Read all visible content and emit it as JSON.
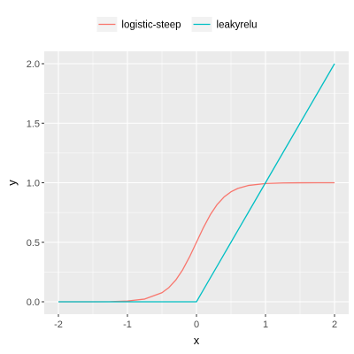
{
  "chart_data": {
    "type": "line",
    "xlabel": "x",
    "ylabel": "y",
    "xlim": [
      -2,
      2
    ],
    "ylim": [
      0,
      2
    ],
    "x_ticks": [
      -2,
      -1,
      0,
      1,
      2
    ],
    "x_tick_labels": [
      "-2",
      "-1",
      "0",
      "1",
      "2"
    ],
    "y_ticks": [
      0,
      0.5,
      1,
      1.5,
      2
    ],
    "y_tick_labels": [
      "0.0",
      "0.5",
      "1.0",
      "1.5",
      "2.0"
    ],
    "grid": true,
    "legend_position": "top",
    "x": [
      -2.0,
      -1.75,
      -1.5,
      -1.25,
      -1.0,
      -0.75,
      -0.5,
      -0.4,
      -0.3,
      -0.2,
      -0.1,
      0.0,
      0.1,
      0.2,
      0.3,
      0.4,
      0.5,
      0.6,
      0.75,
      1.0,
      1.25,
      1.5,
      1.75,
      2.0
    ],
    "series": [
      {
        "name": "logistic-steep",
        "color": "#F8766D",
        "values": [
          0.0,
          0.0001,
          0.0002,
          0.0009,
          0.0067,
          0.0229,
          0.0759,
          0.1192,
          0.1824,
          0.2689,
          0.3775,
          0.5,
          0.6225,
          0.7311,
          0.8176,
          0.8808,
          0.9241,
          0.9526,
          0.9771,
          0.9933,
          0.9981,
          0.9994,
          0.9998,
          1.0
        ]
      },
      {
        "name": "leakyrelu",
        "color": "#00BFC4",
        "values": [
          0.0,
          0.0,
          0.0,
          0.0,
          0.0,
          0.0,
          0.0,
          0.0,
          0.0,
          0.0,
          0.0,
          0.0,
          0.1,
          0.2,
          0.3,
          0.4,
          0.5,
          0.6,
          0.75,
          1.0,
          1.25,
          1.5,
          1.75,
          2.0
        ]
      }
    ]
  }
}
